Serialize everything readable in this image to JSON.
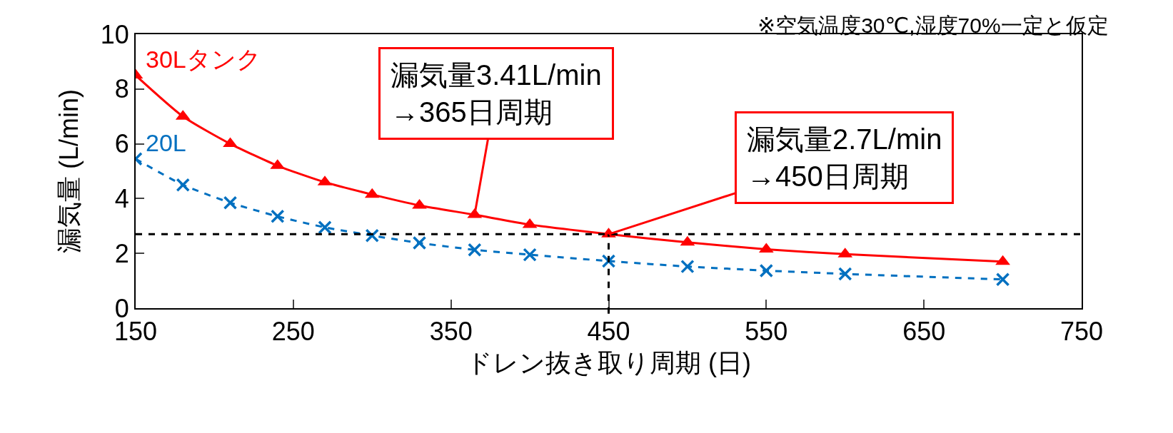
{
  "chart_data": {
    "type": "line",
    "xlabel": "ドレン抜き取り周期 (日)",
    "ylabel": "漏気量 (L/min)",
    "x": [
      150,
      180,
      210,
      240,
      270,
      300,
      330,
      365,
      400,
      450,
      500,
      550,
      600,
      700
    ],
    "series": [
      {
        "name": "30Lタンク",
        "color": "#ff0000",
        "marker": "triangle",
        "line_style": "solid",
        "values": [
          8.5,
          7.0,
          6.0,
          5.2,
          4.6,
          4.15,
          3.75,
          3.41,
          3.05,
          2.7,
          2.4,
          2.15,
          1.97,
          1.7
        ]
      },
      {
        "name": "20L",
        "color": "#0070c0",
        "marker": "cross",
        "line_style": "dashed",
        "values": [
          5.45,
          4.5,
          3.85,
          3.35,
          2.95,
          2.65,
          2.38,
          2.13,
          1.95,
          1.72,
          1.52,
          1.37,
          1.25,
          1.05
        ]
      }
    ],
    "xlim": [
      150,
      750
    ],
    "xticks": [
      150,
      250,
      350,
      450,
      550,
      650,
      750
    ],
    "ylim": [
      0,
      10
    ],
    "yticks": [
      0,
      2,
      4,
      6,
      8,
      10
    ],
    "grid": false,
    "legend": false,
    "ref_lines": [
      {
        "axis": "y",
        "value": 2.7,
        "color": "#000000",
        "line_style": "dashed"
      },
      {
        "axis": "x",
        "value": 450,
        "color": "#000000",
        "line_style": "dashed"
      }
    ],
    "annotations": [
      {
        "text": "漏気量3.41L/min\n→365日周期",
        "x": 365,
        "y": 3.41
      },
      {
        "text": "漏気量2.7L/min\n→450日周期",
        "x": 450,
        "y": 2.7
      },
      "※空気温度30℃,湿度70%一定と仮定"
    ]
  }
}
